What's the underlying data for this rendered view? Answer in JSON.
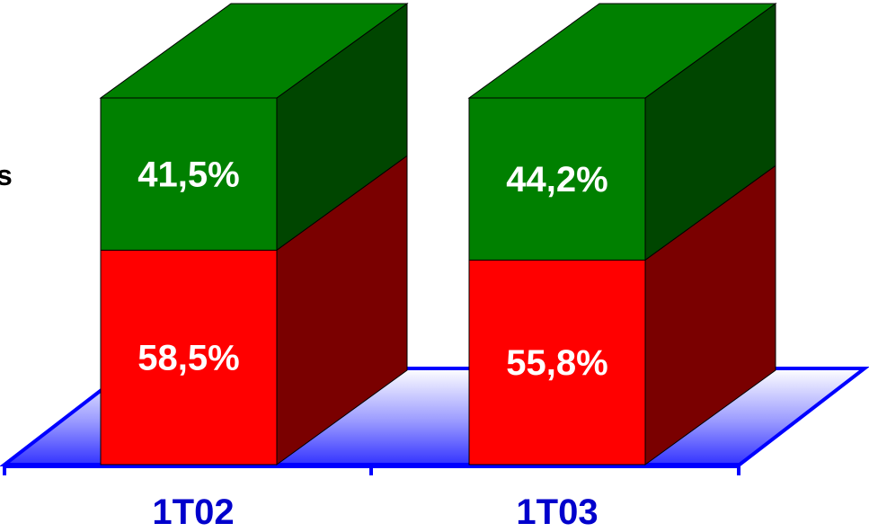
{
  "chart_data": {
    "type": "bar",
    "stacked": true,
    "three_d": true,
    "categories": [
      "1T02",
      "1T03"
    ],
    "series": [
      {
        "values": [
          58.5,
          55.8
        ],
        "labels": [
          "58,5%",
          "55,8%"
        ],
        "color": "#ff0000",
        "side_color": "#7a0000"
      },
      {
        "values": [
          41.5,
          44.2
        ],
        "labels": [
          "41,5%",
          "44,2%"
        ],
        "color": "#008000",
        "side_color": "#004600"
      }
    ],
    "ylim": [
      0,
      100
    ],
    "floor_color": "#0000ff",
    "category_label_color": "#0000cc"
  },
  "partial_text": "s"
}
